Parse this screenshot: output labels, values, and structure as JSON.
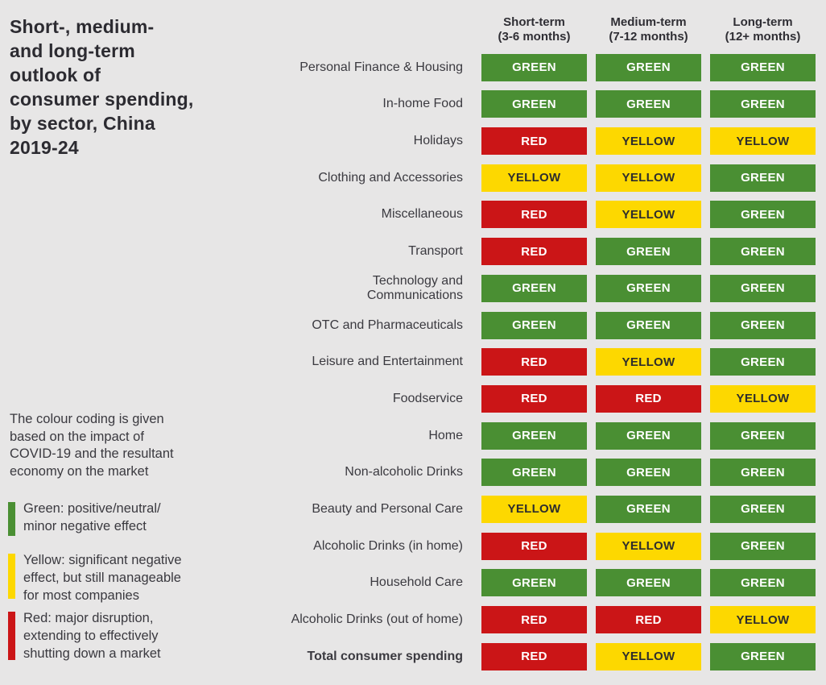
{
  "page": {
    "background": "#e7e6e6"
  },
  "title": "Short-, medium-\nand long-term\noutlook of\nconsumer spending,\nby sector, China\n2019-24",
  "legend": {
    "intro": "The colour coding is given\nbased on the impact of\nCOVID-19 and the resultant\neconomy on the market",
    "items": [
      {
        "key": "GREEN",
        "text": "Green: positive/neutral/\nminor negative effect"
      },
      {
        "key": "YELLOW",
        "text": "Yellow: significant negative\neffect, but still manageable\nfor most companies"
      },
      {
        "key": "RED",
        "text": "Red: major disruption,\nextending to effectively\nshutting down a market"
      }
    ]
  },
  "colors": {
    "GREEN": {
      "bg": "#4a8f33",
      "fg": "#ffffff"
    },
    "YELLOW": {
      "bg": "#fdd800",
      "fg": "#2d2d2d"
    },
    "RED": {
      "bg": "#cb1517",
      "fg": "#ffffff"
    }
  },
  "table": {
    "columns": [
      "Short-term\n(3-6 months)",
      "Medium-term\n(7-12 months)",
      "Long-term\n(12+ months)"
    ],
    "rows": [
      {
        "sector": "Personal Finance & Housing",
        "values": [
          "GREEN",
          "GREEN",
          "GREEN"
        ]
      },
      {
        "sector": "In-home Food",
        "values": [
          "GREEN",
          "GREEN",
          "GREEN"
        ]
      },
      {
        "sector": "Holidays",
        "values": [
          "RED",
          "YELLOW",
          "YELLOW"
        ]
      },
      {
        "sector": "Clothing and Accessories",
        "values": [
          "YELLOW",
          "YELLOW",
          "GREEN"
        ]
      },
      {
        "sector": "Miscellaneous",
        "values": [
          "RED",
          "YELLOW",
          "GREEN"
        ]
      },
      {
        "sector": "Transport",
        "values": [
          "RED",
          "GREEN",
          "GREEN"
        ]
      },
      {
        "sector": "Technology and\nCommunications",
        "values": [
          "GREEN",
          "GREEN",
          "GREEN"
        ]
      },
      {
        "sector": "OTC and Pharmaceuticals",
        "values": [
          "GREEN",
          "GREEN",
          "GREEN"
        ]
      },
      {
        "sector": "Leisure and Entertainment",
        "values": [
          "RED",
          "YELLOW",
          "GREEN"
        ]
      },
      {
        "sector": "Foodservice",
        "values": [
          "RED",
          "RED",
          "YELLOW"
        ]
      },
      {
        "sector": "Home",
        "values": [
          "GREEN",
          "GREEN",
          "GREEN"
        ]
      },
      {
        "sector": "Non-alcoholic Drinks",
        "values": [
          "GREEN",
          "GREEN",
          "GREEN"
        ]
      },
      {
        "sector": "Beauty and Personal Care",
        "values": [
          "YELLOW",
          "GREEN",
          "GREEN"
        ]
      },
      {
        "sector": "Alcoholic Drinks (in home)",
        "values": [
          "RED",
          "YELLOW",
          "GREEN"
        ]
      },
      {
        "sector": "Household Care",
        "values": [
          "GREEN",
          "GREEN",
          "GREEN"
        ]
      },
      {
        "sector": "Alcoholic Drinks (out of home)",
        "values": [
          "RED",
          "RED",
          "YELLOW"
        ]
      },
      {
        "sector": "Total consumer spending",
        "values": [
          "RED",
          "YELLOW",
          "GREEN"
        ],
        "bold": true
      }
    ]
  },
  "chart_data": {
    "type": "heatmap",
    "title": "Short-, medium- and long-term outlook of consumer spending, by sector, China 2019-24",
    "columns": [
      "Short-term (3-6 months)",
      "Medium-term (7-12 months)",
      "Long-term (12+ months)"
    ],
    "categories": [
      "Personal Finance & Housing",
      "In-home Food",
      "Holidays",
      "Clothing and Accessories",
      "Miscellaneous",
      "Transport",
      "Technology and Communications",
      "OTC and Pharmaceuticals",
      "Leisure and Entertainment",
      "Foodservice",
      "Home",
      "Non-alcoholic Drinks",
      "Beauty and Personal Care",
      "Alcoholic Drinks (in home)",
      "Household Care",
      "Alcoholic Drinks (out of home)",
      "Total consumer spending"
    ],
    "values": [
      [
        "GREEN",
        "GREEN",
        "GREEN"
      ],
      [
        "GREEN",
        "GREEN",
        "GREEN"
      ],
      [
        "RED",
        "YELLOW",
        "YELLOW"
      ],
      [
        "YELLOW",
        "YELLOW",
        "GREEN"
      ],
      [
        "RED",
        "YELLOW",
        "GREEN"
      ],
      [
        "RED",
        "GREEN",
        "GREEN"
      ],
      [
        "GREEN",
        "GREEN",
        "GREEN"
      ],
      [
        "GREEN",
        "GREEN",
        "GREEN"
      ],
      [
        "RED",
        "YELLOW",
        "GREEN"
      ],
      [
        "RED",
        "RED",
        "YELLOW"
      ],
      [
        "GREEN",
        "GREEN",
        "GREEN"
      ],
      [
        "GREEN",
        "GREEN",
        "GREEN"
      ],
      [
        "YELLOW",
        "GREEN",
        "GREEN"
      ],
      [
        "RED",
        "YELLOW",
        "GREEN"
      ],
      [
        "GREEN",
        "GREEN",
        "GREEN"
      ],
      [
        "RED",
        "RED",
        "YELLOW"
      ],
      [
        "RED",
        "YELLOW",
        "GREEN"
      ]
    ],
    "legend": {
      "GREEN": "positive/neutral/minor negative effect",
      "YELLOW": "significant negative effect, but still manageable for most companies",
      "RED": "major disruption, extending to effectively shutting down a market"
    },
    "color_map": {
      "GREEN": "#4a8f33",
      "YELLOW": "#fdd800",
      "RED": "#cb1517"
    },
    "legend_position": "bottom-left"
  }
}
